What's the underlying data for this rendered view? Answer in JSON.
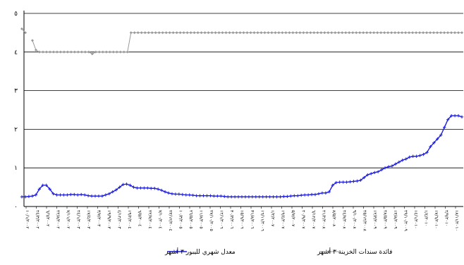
{
  "chart_data": {
    "type": "line",
    "title": "",
    "xlabel": "",
    "ylabel": "",
    "ylim": [
      0,
      5
    ],
    "yticks": [
      "٠",
      "١",
      "٢",
      "٣",
      "٤",
      "٥"
    ],
    "grid": true,
    "legend_position": "bottom",
    "xtick_labels": [
      "١٠/١/٢٠٠٢",
      "٢٤/٣/٢٠٠٢",
      "٦/٦/٢٠٠٢",
      "٢٢/٨/٢٠٠٢",
      "٧/١١/٢٠٠٢",
      "٢٤/١/٢٠٠٣",
      "١٧/٤/٢٠٠٣",
      "٣/٧/٢٠٠٣",
      "١٩/٩/٢٠٠٣",
      "٤/١٢/٢٠٠٣",
      "١٩/٢/٢٠٠٤",
      "٦/٥/٢٠٠٤",
      "٢٢/٧/٢٠٠٤",
      "٧/١٠/٢٠٠٤",
      "٢٣/١٢/٢٠٠٤",
      "١٠/٣/٢٠٠٥",
      "٢٦/٥/٢٠٠٥",
      "١١/٨/٢٠٠٥",
      "٢٧/١٠/٢٠٠٥",
      "١٢/١/٢٠٠٦",
      "٣٠/٣/٢٠٠٦",
      "١٥/٦/٢٠٠٦",
      "٣١/٨/٢٠٠٦",
      "١٦/١١/٢٠٠٦",
      "١/٢/٢٠٠٧",
      "١٩/٤/٢٠٠٧",
      "٥/٧/٢٠٠٧",
      "٢٠/٩/٢٠٠٧",
      "٦/١٢/٢٠٠٧",
      "٢١/٢/٢٠٠٨",
      "٨/٥/٢٠٠٨",
      "٢٤/٧/٢٠٠٨",
      "٩/١٠/٢٠٠٨",
      "٢٥/١٢/٢٠٠٨",
      "١٢/٣/٢٠٠٩",
      "٢٨/٥/٢٠٠٩",
      "١٣/٨/٢٠٠٩",
      "٢٩/١٠/٢٠٠٩",
      "١٤/١/٢٠١٠",
      "١/٤/٢٠١٠",
      "١٧/٦/٢٠١٠",
      "٢/٩/٢٠١٠",
      "١٨/١١/٢٠١٠"
    ],
    "series": [
      {
        "name": "فائدة سندات الخزينة ٣ أشهر",
        "color": "#999999",
        "marker": "diamond",
        "values": [
          4.6,
          4.5,
          null,
          4.3,
          4.05,
          4.0,
          4.0,
          4.0,
          4.0,
          4.0,
          4.0,
          4.0,
          4.0,
          4.0,
          4.0,
          4.0,
          4.0,
          4.0,
          4.0,
          4.0,
          3.95,
          4.0,
          4.0,
          4.0,
          4.0,
          4.0,
          4.0,
          4.0,
          4.0,
          4.0,
          4.0,
          4.5,
          4.5,
          4.5,
          4.5,
          4.5,
          4.5,
          4.5,
          4.5,
          4.5,
          4.5,
          4.5,
          4.5,
          4.5,
          4.5,
          4.5,
          4.5,
          4.5,
          4.5,
          4.5,
          4.5,
          4.5,
          4.5,
          4.5,
          4.5,
          4.5,
          4.5,
          4.5,
          4.5,
          4.5,
          4.5,
          4.5,
          4.5,
          4.5,
          4.5,
          4.5,
          4.5,
          4.5,
          4.5,
          4.5,
          4.5,
          4.5,
          4.5,
          4.5,
          4.5,
          4.5,
          4.5,
          4.5,
          4.5,
          4.5,
          4.5,
          4.5,
          4.5,
          4.5,
          4.5,
          4.5,
          4.5,
          4.5,
          4.5,
          4.5,
          4.5,
          4.5,
          4.5,
          4.5,
          4.5,
          4.5,
          4.5,
          4.5,
          4.5,
          4.5,
          4.5,
          4.5,
          4.5,
          4.5,
          4.5,
          4.5,
          4.5,
          4.5,
          4.5,
          4.5,
          4.5,
          4.5,
          4.5,
          4.5,
          4.5,
          4.5,
          4.5,
          4.5,
          4.5,
          4.5,
          4.5,
          4.5,
          4.5,
          4.5,
          4.5,
          4.5
        ]
      },
      {
        "name": "معدل شهري لليبور ٣ أشهر",
        "color": "#1f1fdd",
        "marker": "plus",
        "values": [
          0.25,
          0.25,
          0.26,
          0.27,
          0.3,
          0.45,
          0.55,
          0.55,
          0.45,
          0.33,
          0.3,
          0.3,
          0.3,
          0.3,
          0.31,
          0.31,
          0.3,
          0.31,
          0.3,
          0.28,
          0.27,
          0.27,
          0.27,
          0.27,
          0.3,
          0.33,
          0.38,
          0.43,
          0.5,
          0.57,
          0.58,
          0.55,
          0.5,
          0.48,
          0.48,
          0.48,
          0.48,
          0.47,
          0.47,
          0.45,
          0.42,
          0.38,
          0.35,
          0.33,
          0.32,
          0.32,
          0.31,
          0.3,
          0.3,
          0.29,
          0.28,
          0.28,
          0.28,
          0.28,
          0.28,
          0.27,
          0.27,
          0.27,
          0.26,
          0.25,
          0.25,
          0.25,
          0.25,
          0.25,
          0.25,
          0.25,
          0.25,
          0.25,
          0.25,
          0.25,
          0.25,
          0.25,
          0.25,
          0.25,
          0.25,
          0.26,
          0.26,
          0.27,
          0.28,
          0.28,
          0.29,
          0.3,
          0.3,
          0.31,
          0.31,
          0.33,
          0.35,
          0.35,
          0.38,
          0.55,
          0.62,
          0.63,
          0.63,
          0.63,
          0.64,
          0.65,
          0.66,
          0.68,
          0.75,
          0.82,
          0.85,
          0.88,
          0.9,
          0.95,
          1.0,
          1.03,
          1.05,
          1.1,
          1.15,
          1.2,
          1.23,
          1.28,
          1.3,
          1.3,
          1.32,
          1.35,
          1.4,
          1.55,
          1.65,
          1.75,
          1.85,
          2.05,
          2.25,
          2.35,
          2.35,
          2.35,
          2.32
        ]
      }
    ]
  }
}
